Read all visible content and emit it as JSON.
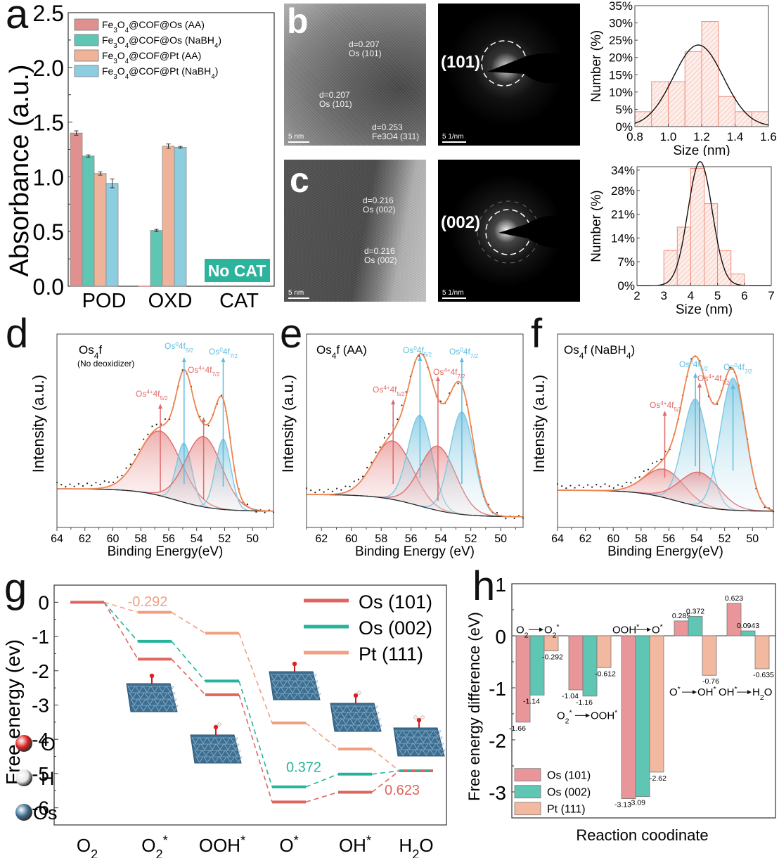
{
  "panel_labels": {
    "a": "a",
    "b": "b",
    "c": "c",
    "d": "d",
    "e": "e",
    "f": "f",
    "g": "g",
    "h": "h"
  },
  "tem": {
    "b": {
      "letter": "b",
      "annotations": [
        "d=0.207 Os (101)",
        "d=0.207 Os (101)",
        "d=0.253 Fe3O4 (311)"
      ],
      "scale": "5 nm"
    },
    "c": {
      "letter": "c",
      "annotations": [
        "d=0.216 Os (002)",
        "d=0.216 Os (002)"
      ],
      "scale": "5 nm"
    },
    "saed_b": {
      "hkl": "(101)",
      "scale": "5 1/nm"
    },
    "saed_c": {
      "hkl": "(002)",
      "scale": "5 1/nm"
    }
  },
  "chart_data": [
    {
      "id": "a",
      "type": "bar",
      "title": "",
      "xlabel": "",
      "ylabel": "Absorbance (a.u.)",
      "ylim": [
        0,
        2.5
      ],
      "yticks": [
        "0.0",
        "0.5",
        "1.0",
        "1.5",
        "2.0",
        "2.5"
      ],
      "categories": [
        "POD",
        "OXD",
        "CAT"
      ],
      "series": [
        {
          "name": "Fe3O4@COF@Os (AA)",
          "color": "#e0908f",
          "values": [
            1.4,
            0.0,
            null
          ],
          "errors": [
            0.02,
            0,
            null
          ]
        },
        {
          "name": "Fe3O4@COF@Os (NaBH4)",
          "color": "#5fc6b4",
          "values": [
            1.19,
            0.51,
            null
          ],
          "errors": [
            0.01,
            0.01,
            null
          ]
        },
        {
          "name": "Fe3O4@COF@Pt (AA)",
          "color": "#efb39a",
          "values": [
            1.03,
            1.28,
            null
          ],
          "errors": [
            0.015,
            0.02,
            null
          ]
        },
        {
          "name": "Fe3O4@COF@Pt (NaBH4)",
          "color": "#8dcde0",
          "values": [
            0.94,
            1.27,
            null
          ],
          "errors": [
            0.04,
            0.008,
            null
          ]
        }
      ],
      "annotation": {
        "text": "No CAT",
        "color": "#2bb39c"
      },
      "legend_position": "top-left"
    },
    {
      "id": "b-hist",
      "type": "bar",
      "xlabel": "Size (nm)",
      "ylabel": "Number (%)",
      "xlim": [
        0.8,
        1.6
      ],
      "ylim": [
        0,
        35
      ],
      "xticks": [
        "0.8",
        "1.0",
        "1.2",
        "1.4",
        "1.6"
      ],
      "yticks": [
        "0%",
        "5%",
        "10%",
        "15%",
        "20%",
        "25%",
        "30%",
        "35%"
      ],
      "bins": [
        [
          0.8,
          0.9
        ],
        [
          0.9,
          1.0
        ],
        [
          1.0,
          1.1
        ],
        [
          1.1,
          1.2
        ],
        [
          1.2,
          1.3
        ],
        [
          1.3,
          1.4
        ],
        [
          1.4,
          1.5
        ],
        [
          1.5,
          1.6
        ]
      ],
      "values": [
        4.3,
        13.0,
        13.0,
        21.7,
        30.4,
        8.7,
        4.3,
        4.3
      ],
      "fit": {
        "type": "gaussian",
        "mean": 1.18,
        "sigma": 0.15,
        "peak": 23.6
      },
      "color": "#f08a78"
    },
    {
      "id": "c-hist",
      "type": "bar",
      "xlabel": "Size (nm)",
      "ylabel": "Number (%)",
      "xlim": [
        2,
        7
      ],
      "ylim": [
        0,
        35
      ],
      "xticks": [
        "2",
        "3",
        "4",
        "5",
        "6",
        "7"
      ],
      "yticks": [
        "0%",
        "7%",
        "14%",
        "21%",
        "28%",
        "34%"
      ],
      "ytick_values": [
        0,
        7,
        14,
        21,
        28,
        34
      ],
      "bins": [
        [
          3,
          3.5
        ],
        [
          3.5,
          4
        ],
        [
          4,
          4.5
        ],
        [
          4.5,
          5
        ],
        [
          5,
          5.5
        ],
        [
          5.5,
          6
        ]
      ],
      "values": [
        10.3,
        17.2,
        34.5,
        24.1,
        10.3,
        3.4
      ],
      "fit": {
        "type": "gaussian",
        "mean": 4.35,
        "sigma": 0.45,
        "peak": 36.5
      },
      "color": "#f08a78"
    },
    {
      "id": "d",
      "type": "line",
      "title": "Os4f",
      "subtitle": "(No deoxidizer)",
      "xlabel": "Binding Energy(eV)",
      "ylabel": "Intensity (a.u.)",
      "xlim": [
        64,
        48.5
      ],
      "xticks": [
        "64",
        "62",
        "60",
        "58",
        "56",
        "54",
        "52",
        "50"
      ],
      "peaks": [
        {
          "label": "Os4+4f5/2",
          "species": "Os4+",
          "center": 56.6,
          "height": 0.46,
          "width": 1.5
        },
        {
          "label": "Os04f5/2",
          "species": "Os0",
          "center": 54.9,
          "height": 0.42,
          "width": 0.55
        },
        {
          "label": "Os4+4f7/2",
          "species": "Os4+",
          "center": 53.5,
          "height": 0.5,
          "width": 1.3
        },
        {
          "label": "Os04f7/2",
          "species": "Os0",
          "center": 52.1,
          "height": 0.5,
          "width": 0.55
        }
      ],
      "annotations": [
        "Os04f5/2",
        "Os04f7/2",
        "Os4+4f7/2",
        "Os4+4f5/2"
      ]
    },
    {
      "id": "e",
      "type": "line",
      "title": "Os4f (AA)",
      "xlabel": "Binding Energy (eV)",
      "ylabel": "Intensity (a.u.)",
      "xlim": [
        63,
        48.5
      ],
      "xticks": [
        "62",
        "60",
        "58",
        "56",
        "54",
        "52",
        "50"
      ],
      "peaks": [
        {
          "label": "Os4+4f5/2",
          "species": "Os4+",
          "center": 57.2,
          "height": 0.4,
          "width": 1.3
        },
        {
          "label": "Os04f5/2",
          "species": "Os0",
          "center": 55.4,
          "height": 0.62,
          "width": 0.8
        },
        {
          "label": "Os4+4f7/2",
          "species": "Os4+",
          "center": 54.2,
          "height": 0.44,
          "width": 1.2
        },
        {
          "label": "Os04f7/2",
          "species": "Os0",
          "center": 52.6,
          "height": 0.7,
          "width": 0.8
        }
      ],
      "annotations": [
        "Os04f5/2",
        "Os04f7/2",
        "Os4+4f7/2",
        "Os4+4f5/2"
      ]
    },
    {
      "id": "f",
      "type": "line",
      "title": "Os4f (NaBH4)",
      "xlabel": "Binding Energy(eV)",
      "ylabel": "Intensity (a.u.)",
      "xlim": [
        64,
        48.5
      ],
      "xticks": [
        "64",
        "62",
        "60",
        "58",
        "56",
        "54",
        "52",
        "50"
      ],
      "peaks": [
        {
          "label": "Os4+4f5/2",
          "species": "Os4+",
          "center": 56.3,
          "height": 0.2,
          "width": 1.4
        },
        {
          "label": "Os04f5/2",
          "species": "Os0",
          "center": 54.1,
          "height": 0.75,
          "width": 0.9
        },
        {
          "label": "Os4+4f7/2",
          "species": "Os4+",
          "center": 53.8,
          "height": 0.24,
          "width": 1.4
        },
        {
          "label": "Os04f7/2",
          "species": "Os0",
          "center": 51.4,
          "height": 0.93,
          "width": 0.9
        }
      ],
      "annotations": [
        "Os04f5/2",
        "Os04f7/2",
        "Os4+4f7/2",
        "Os4+4f5/2"
      ]
    },
    {
      "id": "g",
      "type": "line",
      "title": "",
      "xlabel": "",
      "ylabel": "Free energy (ev)",
      "ylim": [
        -6.5,
        0.5
      ],
      "yticks": [
        "0",
        "-1",
        "-2",
        "-3",
        "-4",
        "-5",
        "-6"
      ],
      "categories": [
        "O2",
        "O2*",
        "OOH*",
        "O*",
        "OH*",
        "H2O"
      ],
      "series": [
        {
          "name": "Os (101)",
          "color": "#e0645e",
          "values": [
            0,
            -1.66,
            -2.7,
            -5.83,
            -5.545,
            -4.92
          ]
        },
        {
          "name": "Os (002)",
          "color": "#26b39b",
          "values": [
            0,
            -1.14,
            -2.3,
            -5.39,
            -5.018,
            -4.92
          ]
        },
        {
          "name": "Pt (111)",
          "color": "#f0a080",
          "values": [
            0,
            -0.292,
            -0.904,
            -3.524,
            -4.284,
            -4.92
          ]
        }
      ],
      "value_labels": [
        {
          "text": "-0.292",
          "series": "Pt (111)",
          "color": "#f0a080"
        },
        {
          "text": "0.372",
          "series": "Os (002)",
          "color": "#26b39b"
        },
        {
          "text": "0.623",
          "series": "Os (101)",
          "color": "#e0645e"
        }
      ],
      "atom_legend": [
        {
          "label": "O",
          "color": "#e02020"
        },
        {
          "label": "H",
          "color": "#e8e8e8"
        },
        {
          "label": "Os",
          "color": "#3d6f93"
        }
      ],
      "legend_position": "top-right"
    },
    {
      "id": "h",
      "type": "bar",
      "title": "",
      "xlabel": "Reaction coodinate",
      "ylabel": "Free energy difference (eV)",
      "ylim": [
        -3.5,
        1
      ],
      "yticks": [
        "1",
        "0",
        "-1",
        "-2",
        "-3"
      ],
      "categories": [
        "O2→O2*",
        "O2*→OOH*",
        "OOH*→O*",
        "O*→OH*",
        "OH*→H2O"
      ],
      "series": [
        {
          "name": "Os (101)",
          "color": "#e8969a",
          "values": [
            -1.66,
            -1.04,
            -3.13,
            0.285,
            0.623
          ],
          "labels": [
            "-1.66",
            "-1.04",
            "-3.13",
            "0.285",
            "0.623"
          ]
        },
        {
          "name": "Os (002)",
          "color": "#5fc6b4",
          "values": [
            -1.14,
            -1.16,
            -3.09,
            0.372,
            0.0943
          ],
          "labels": [
            "-1.14",
            "-1.16",
            "-3.09",
            "0.372",
            "0.0943"
          ]
        },
        {
          "name": "Pt (111)",
          "color": "#f3b9a0",
          "values": [
            -0.292,
            -0.612,
            -2.62,
            -0.76,
            -0.635
          ],
          "labels": [
            "-0.292",
            "-0.612",
            "-2.62",
            "-0.76",
            "-0.635"
          ]
        }
      ],
      "step_labels": [
        {
          "from": "O2",
          "to": "O2*"
        },
        {
          "from": "O2*",
          "to": "OOH*"
        },
        {
          "from": "OOH*",
          "to": "O*"
        },
        {
          "from": "O*",
          "to": "OH*"
        },
        {
          "from": "OH*",
          "to": "H2O"
        }
      ],
      "legend_position": "bottom-left"
    }
  ]
}
